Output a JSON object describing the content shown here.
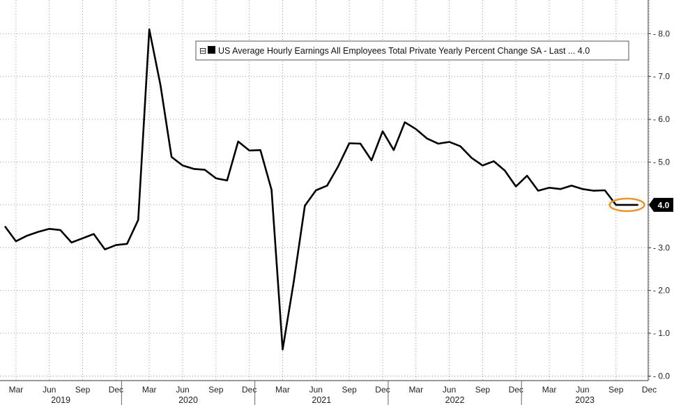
{
  "chart_data": {
    "type": "line",
    "title": "",
    "xlabel": "",
    "ylabel": "",
    "series": [
      {
        "name": "US Average Hourly Earnings All Employees Total Private Yearly Percent Change SA - Last ... 4.0",
        "color": "#000000",
        "points": [
          [
            "2019-02",
            3.5
          ],
          [
            "2019-03",
            3.15
          ],
          [
            "2019-04",
            3.28
          ],
          [
            "2019-05",
            3.37
          ],
          [
            "2019-06",
            3.44
          ],
          [
            "2019-07",
            3.41
          ],
          [
            "2019-08",
            3.12
          ],
          [
            "2019-09",
            3.22
          ],
          [
            "2019-10",
            3.32
          ],
          [
            "2019-11",
            2.96
          ],
          [
            "2019-12",
            3.06
          ],
          [
            "2020-01",
            3.09
          ],
          [
            "2020-02",
            3.65
          ],
          [
            "2020-03",
            8.1
          ],
          [
            "2020-04",
            6.8
          ],
          [
            "2020-05",
            5.12
          ],
          [
            "2020-06",
            4.92
          ],
          [
            "2020-07",
            4.84
          ],
          [
            "2020-08",
            4.82
          ],
          [
            "2020-09",
            4.62
          ],
          [
            "2020-10",
            4.57
          ],
          [
            "2020-11",
            5.48
          ],
          [
            "2020-12",
            5.27
          ],
          [
            "2021-01",
            5.28
          ],
          [
            "2021-02",
            4.35
          ],
          [
            "2021-03",
            0.62
          ],
          [
            "2021-04",
            2.2
          ],
          [
            "2021-05",
            3.98
          ],
          [
            "2021-06",
            4.34
          ],
          [
            "2021-07",
            4.45
          ],
          [
            "2021-08",
            4.9
          ],
          [
            "2021-09",
            5.44
          ],
          [
            "2021-10",
            5.43
          ],
          [
            "2021-11",
            5.04
          ],
          [
            "2021-12",
            5.72
          ],
          [
            "2022-01",
            5.28
          ],
          [
            "2022-02",
            5.93
          ],
          [
            "2022-03",
            5.77
          ],
          [
            "2022-04",
            5.55
          ],
          [
            "2022-05",
            5.43
          ],
          [
            "2022-06",
            5.47
          ],
          [
            "2022-07",
            5.37
          ],
          [
            "2022-08",
            5.1
          ],
          [
            "2022-09",
            4.92
          ],
          [
            "2022-10",
            5.02
          ],
          [
            "2022-11",
            4.8
          ],
          [
            "2022-12",
            4.43
          ],
          [
            "2023-01",
            4.68
          ],
          [
            "2023-02",
            4.33
          ],
          [
            "2023-03",
            4.4
          ],
          [
            "2023-04",
            4.37
          ],
          [
            "2023-05",
            4.45
          ],
          [
            "2023-06",
            4.37
          ],
          [
            "2023-07",
            4.33
          ],
          [
            "2023-08",
            4.34
          ],
          [
            "2023-09",
            4.0
          ],
          [
            "2023-10",
            4.0
          ],
          [
            "2023-11",
            4.0
          ]
        ]
      }
    ],
    "ylim": [
      0.0,
      8.5
    ],
    "yticks": [
      {
        "value": 0.0,
        "label": "0.0"
      },
      {
        "value": 1.0,
        "label": "1.0"
      },
      {
        "value": 2.0,
        "label": "2.0"
      },
      {
        "value": 3.0,
        "label": "3.0"
      },
      {
        "value": 4.0,
        "label": "4.0"
      },
      {
        "value": 5.0,
        "label": "5.0"
      },
      {
        "value": 6.0,
        "label": "6.0"
      },
      {
        "value": 7.0,
        "label": "7.0"
      },
      {
        "value": 8.0,
        "label": "8.0"
      }
    ],
    "xlim": [
      "2019-02",
      "2023-12"
    ],
    "month_ticks": [
      {
        "date": "2019-03",
        "label": "Mar"
      },
      {
        "date": "2019-06",
        "label": "Jun"
      },
      {
        "date": "2019-09",
        "label": "Sep"
      },
      {
        "date": "2019-12",
        "label": "Dec"
      },
      {
        "date": "2020-03",
        "label": "Mar"
      },
      {
        "date": "2020-06",
        "label": "Jun"
      },
      {
        "date": "2020-09",
        "label": "Sep"
      },
      {
        "date": "2020-12",
        "label": "Dec"
      },
      {
        "date": "2021-03",
        "label": "Mar"
      },
      {
        "date": "2021-06",
        "label": "Jun"
      },
      {
        "date": "2021-09",
        "label": "Sep"
      },
      {
        "date": "2021-12",
        "label": "Dec"
      },
      {
        "date": "2022-03",
        "label": "Mar"
      },
      {
        "date": "2022-06",
        "label": "Jun"
      },
      {
        "date": "2022-09",
        "label": "Sep"
      },
      {
        "date": "2022-12",
        "label": "Dec"
      },
      {
        "date": "2023-03",
        "label": "Mar"
      },
      {
        "date": "2023-06",
        "label": "Jun"
      },
      {
        "date": "2023-09",
        "label": "Sep"
      },
      {
        "date": "2023-12",
        "label": "Dec"
      }
    ],
    "year_labels": [
      {
        "label": "2019",
        "from": "2019-01",
        "to": "2019-12"
      },
      {
        "label": "2020",
        "from": "2020-01",
        "to": "2020-12"
      },
      {
        "label": "2021",
        "from": "2021-01",
        "to": "2021-12"
      },
      {
        "label": "2022",
        "from": "2022-01",
        "to": "2022-12"
      },
      {
        "label": "2023",
        "from": "2023-01",
        "to": "2023-12"
      }
    ],
    "year_boundaries": [
      "2020-01",
      "2021-01",
      "2022-01",
      "2023-01"
    ],
    "last_value": {
      "value": 4.0,
      "label": "4.0"
    },
    "highlight": {
      "from": "2023-09",
      "to": "2023-11",
      "value": 4.0,
      "color": "#e8962e"
    },
    "grid": true,
    "legend": {
      "position": "top-right",
      "label": "US Average Hourly Earnings All Employees Total Private Yearly Percent Change SA - Last ... 4.0",
      "toggle_glyph": "⊟"
    },
    "axis_side": "right"
  }
}
